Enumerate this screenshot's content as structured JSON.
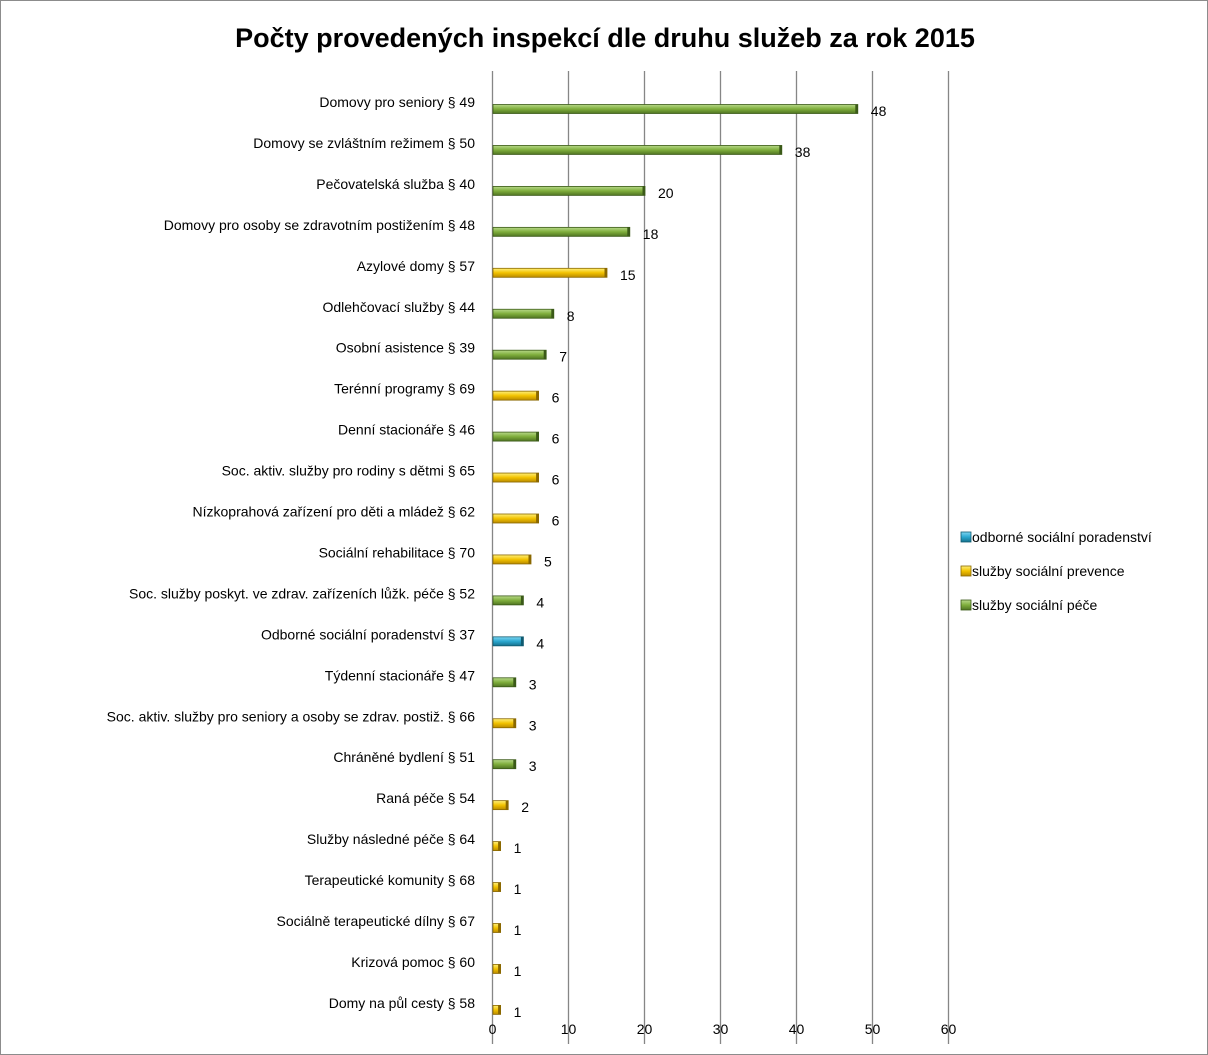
{
  "chart_data": {
    "type": "bar",
    "orientation": "horizontal",
    "title": "Počty provedených inspekcí dle druhu služeb za rok 2015",
    "xlabel": "",
    "ylabel": "",
    "xlim": [
      0,
      60
    ],
    "x_ticks": [
      0,
      10,
      20,
      30,
      40,
      50,
      60
    ],
    "grid": true,
    "legend_position": "right",
    "series": [
      {
        "name": "odborné sociální poradenství",
        "color": "#2aa7cf"
      },
      {
        "name": "služby sociální prevence",
        "color": "#f2c200"
      },
      {
        "name": "služby sociální péče",
        "color": "#7fae3c"
      }
    ],
    "legend_order": [
      0,
      1,
      2
    ],
    "bars": [
      {
        "label": "Domovy pro seniory § 49",
        "value": 48,
        "series": 2
      },
      {
        "label": "Domovy se zvláštním režimem § 50",
        "value": 38,
        "series": 2
      },
      {
        "label": "Pečovatelská služba § 40",
        "value": 20,
        "series": 2
      },
      {
        "label": "Domovy pro osoby se zdravotním postižením § 48",
        "value": 18,
        "series": 2
      },
      {
        "label": "Azylové domy § 57",
        "value": 15,
        "series": 1
      },
      {
        "label": "Odlehčovací služby § 44",
        "value": 8,
        "series": 2
      },
      {
        "label": "Osobní asistence § 39",
        "value": 7,
        "series": 2
      },
      {
        "label": "Terénní programy § 69",
        "value": 6,
        "series": 1
      },
      {
        "label": "Denní stacionáře § 46",
        "value": 6,
        "series": 2
      },
      {
        "label": "Soc. aktiv. služby pro rodiny s dětmi § 65",
        "value": 6,
        "series": 1
      },
      {
        "label": "Nízkoprahová zařízení pro děti a mládež § 62",
        "value": 6,
        "series": 1
      },
      {
        "label": "Sociální rehabilitace § 70",
        "value": 5,
        "series": 1
      },
      {
        "label": "Soc. služby poskyt. ve zdrav. zařízeních lůžk. péče § 52",
        "value": 4,
        "series": 2
      },
      {
        "label": "Odborné sociální poradenství § 37",
        "value": 4,
        "series": 0
      },
      {
        "label": "Týdenní stacionáře § 47",
        "value": 3,
        "series": 2
      },
      {
        "label": "Soc. aktiv. služby pro seniory a osoby se zdrav. postiž. § 66",
        "value": 3,
        "series": 1
      },
      {
        "label": "Chráněné bydlení § 51",
        "value": 3,
        "series": 2
      },
      {
        "label": "Raná péče § 54",
        "value": 2,
        "series": 1
      },
      {
        "label": "Služby následné péče § 64",
        "value": 1,
        "series": 1
      },
      {
        "label": "Terapeutické komunity § 68",
        "value": 1,
        "series": 1
      },
      {
        "label": "Sociálně terapeutické dílny § 67",
        "value": 1,
        "series": 1
      },
      {
        "label": "Krizová pomoc § 60",
        "value": 1,
        "series": 1
      },
      {
        "label": "Domy na půl cesty § 58",
        "value": 1,
        "series": 1
      }
    ]
  }
}
